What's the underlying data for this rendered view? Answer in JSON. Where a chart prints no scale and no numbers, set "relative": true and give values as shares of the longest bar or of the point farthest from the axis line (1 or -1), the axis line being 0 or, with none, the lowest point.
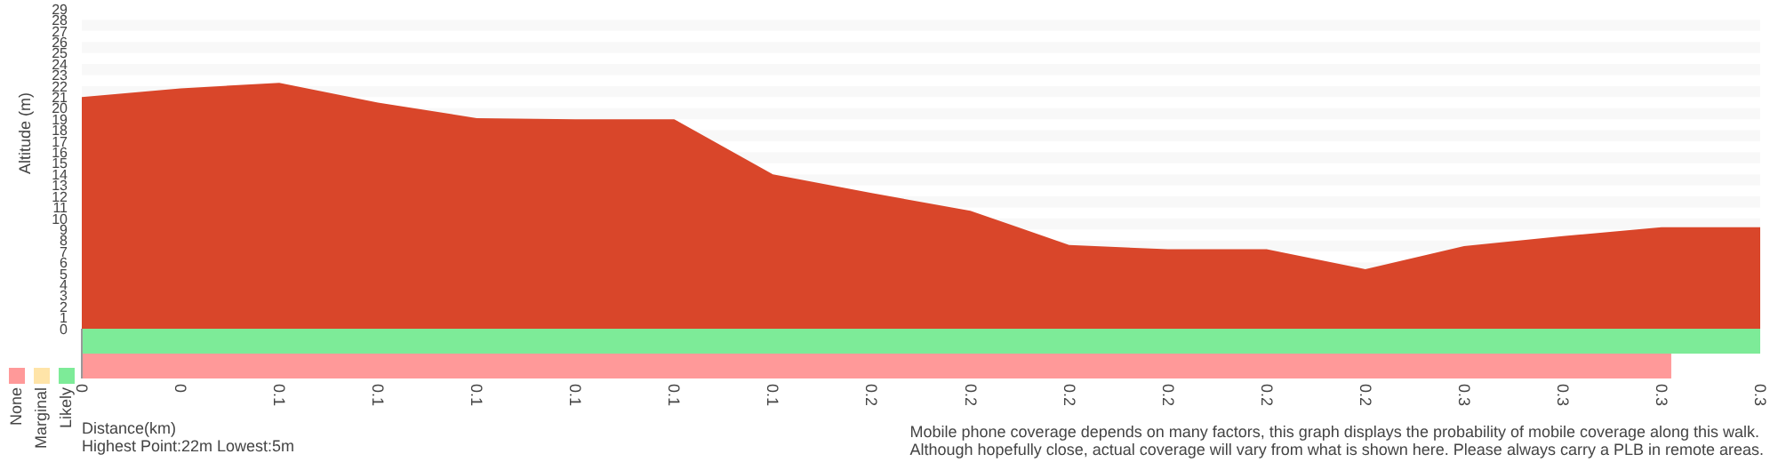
{
  "chart_data": [
    {
      "type": "area",
      "ylabel": "Altitude (m)",
      "xlabel": "Distance(km)",
      "color": "#d9462a",
      "bands": [
        {
          "axis": "y",
          "from": 5,
          "to": 6,
          "color": "#f8f8f8"
        },
        {
          "axis": "y",
          "from": 7,
          "to": 8,
          "color": "#f8f8f8"
        },
        {
          "axis": "y",
          "from": 9,
          "to": 10,
          "color": "#f8f8f8"
        },
        {
          "axis": "y",
          "from": 11,
          "to": 12,
          "color": "#f8f8f8"
        },
        {
          "axis": "y",
          "from": 13,
          "to": 14,
          "color": "#f8f8f8"
        },
        {
          "axis": "y",
          "from": 15,
          "to": 16,
          "color": "#f8f8f8"
        },
        {
          "axis": "y",
          "from": 17,
          "to": 18,
          "color": "#f8f8f8"
        },
        {
          "axis": "y",
          "from": 19,
          "to": 20,
          "color": "#f8f8f8"
        },
        {
          "axis": "y",
          "from": 21,
          "to": 22,
          "color": "#f8f8f8"
        },
        {
          "axis": "y",
          "from": 23,
          "to": 24,
          "color": "#f8f8f8"
        },
        {
          "axis": "y",
          "from": 25,
          "to": 26,
          "color": "#f8f8f8"
        },
        {
          "axis": "y",
          "from": 27,
          "to": 28,
          "color": "#f8f8f8"
        }
      ],
      "categories": [
        "0",
        "0",
        "0.1",
        "0.1",
        "0.1",
        "0.1",
        "0.1",
        "0.1",
        "0.2",
        "0.2",
        "0.2",
        "0.2",
        "0.2",
        "0.2",
        "0.3",
        "0.3",
        "0.3",
        "0.3"
      ],
      "values": [
        21.0,
        21.8,
        22.3,
        20.5,
        19.1,
        19.0,
        19.0,
        14.0,
        12.3,
        10.7,
        7.6,
        7.2,
        7.2,
        5.4,
        7.5,
        8.4,
        9.2,
        9.2
      ],
      "ylim": [
        0,
        29
      ],
      "yticks": [
        0,
        1,
        2,
        3,
        4,
        5,
        6,
        7,
        8,
        9,
        10,
        11,
        12,
        13,
        14,
        15,
        16,
        17,
        18,
        19,
        20,
        21,
        22,
        23,
        24,
        25,
        26,
        27,
        28,
        29
      ],
      "annotations": [
        "Highest Point:22m Lowest:5m",
        "Mobile phone coverage depends on many factors, this graph displays the probability of mobile coverage along this walk.",
        "Although hopefully close, actual coverage will vary from what is shown here. Please always carry a PLB in remote areas."
      ]
    },
    {
      "type": "bar",
      "orientation": "horizontal",
      "stacked": true,
      "relative": true,
      "legend": "left",
      "categories": [
        null,
        null
      ],
      "series": [
        {
          "name": "None",
          "color": "#ff9999",
          "values": [
            null,
            0.947
          ]
        },
        {
          "name": "Marginal",
          "color": "#ffe4a8",
          "values": [
            null,
            null
          ]
        },
        {
          "name": "Likely",
          "color": "#7deb98",
          "values": [
            1,
            null
          ]
        }
      ]
    }
  ]
}
